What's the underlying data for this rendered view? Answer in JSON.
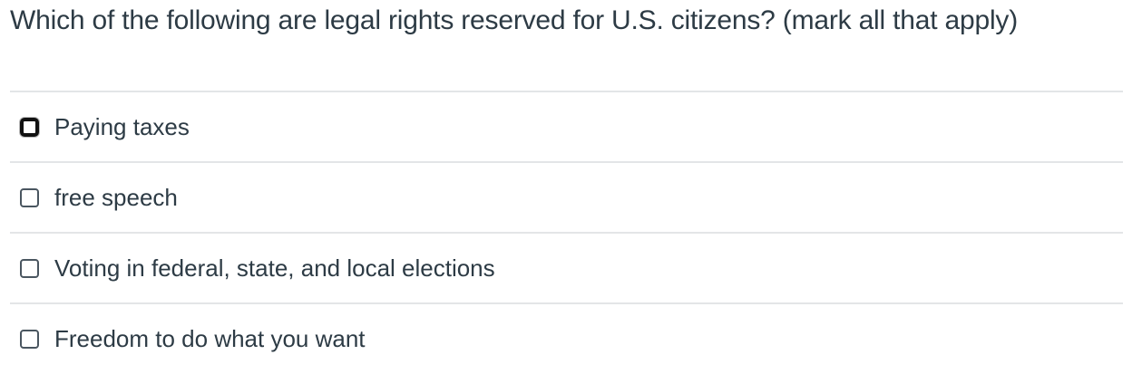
{
  "question": "Which of the following are legal rights reserved for U.S. citizens? (mark all that apply)",
  "answers": [
    {
      "label": "Paying taxes",
      "checked": false,
      "focused": true
    },
    {
      "label": "free speech",
      "checked": false,
      "focused": false
    },
    {
      "label": "Voting in federal, state, and local elections",
      "checked": false,
      "focused": false
    },
    {
      "label": "Freedom to do what you want",
      "checked": false,
      "focused": false
    }
  ]
}
